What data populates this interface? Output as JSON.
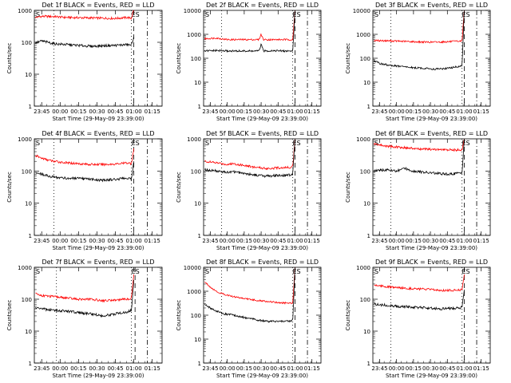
{
  "figure": {
    "colors": {
      "events": "#000000",
      "lld": "#ff0000",
      "axes": "#000000",
      "background": "#ffffff"
    }
  },
  "chart_data": [
    {
      "type": "line",
      "title": "Det 1f BLACK = Events, RED = LLD",
      "xlabel": "Start Time (29-May-09 23:39:00)",
      "ylabel": "Counts/sec",
      "xlim": [
        "23:39",
        "01:23"
      ],
      "ylim": [
        1,
        1000
      ],
      "yscale": "log",
      "x_ticks": [
        "23:45",
        "00:00",
        "00:15",
        "00:30",
        "00:45",
        "01:00",
        "01:15"
      ],
      "y_ticks": [
        "1",
        "10",
        "100",
        "1000"
      ],
      "markers": {
        "left": "S",
        "right": "ES"
      },
      "vlines": [
        {
          "x": "23:55",
          "style": "dotted"
        },
        {
          "x": "00:58",
          "style": "dotted"
        },
        {
          "x": "01:00",
          "style": "dashed"
        },
        {
          "x": "01:11",
          "style": "dashdot"
        }
      ],
      "series": [
        {
          "name": "LLD",
          "color": "#ff0000",
          "x": [
            "23:40",
            "23:45",
            "23:55",
            "00:05",
            "00:15",
            "00:25",
            "00:35",
            "00:45",
            "00:55",
            "00:58",
            "01:00"
          ],
          "y": [
            600,
            650,
            640,
            600,
            590,
            580,
            570,
            560,
            600,
            560,
            1100
          ]
        },
        {
          "name": "Events",
          "color": "#000000",
          "x": [
            "23:40",
            "23:45",
            "23:50",
            "23:55",
            "00:05",
            "00:15",
            "00:25",
            "00:35",
            "00:45",
            "00:55",
            "00:58",
            "01:00"
          ],
          "y": [
            95,
            110,
            100,
            90,
            85,
            80,
            75,
            78,
            80,
            85,
            80,
            150
          ]
        }
      ]
    },
    {
      "type": "line",
      "title": "Det 2f BLACK = Events, RED = LLD",
      "xlabel": "Start Time (29-May-09 23:39:00)",
      "ylabel": "Counts/sec",
      "xlim": [
        "23:39",
        "01:23"
      ],
      "ylim": [
        1,
        10000
      ],
      "yscale": "log",
      "x_ticks": [
        "23:45",
        "00:00",
        "00:15",
        "00:30",
        "00:45",
        "01:00",
        "01:15"
      ],
      "y_ticks": [
        "1",
        "10",
        "100",
        "1000",
        "10000"
      ],
      "markers": {
        "left": "S",
        "right": "ES"
      },
      "vlines": [
        {
          "x": "23:55",
          "style": "dotted"
        },
        {
          "x": "00:58",
          "style": "dotted"
        },
        {
          "x": "01:00",
          "style": "dashed"
        },
        {
          "x": "01:11",
          "style": "dashdot"
        }
      ],
      "series": [
        {
          "name": "LLD",
          "color": "#ff0000",
          "x": [
            "23:40",
            "23:50",
            "00:00",
            "00:10",
            "00:20",
            "00:28",
            "00:30",
            "00:32",
            "00:40",
            "00:50",
            "00:58",
            "01:00"
          ],
          "y": [
            650,
            700,
            600,
            600,
            600,
            600,
            1000,
            600,
            600,
            600,
            600,
            10000
          ]
        },
        {
          "name": "Events",
          "color": "#000000",
          "x": [
            "23:40",
            "23:50",
            "00:00",
            "00:10",
            "00:20",
            "00:28",
            "00:30",
            "00:32",
            "00:40",
            "00:50",
            "00:58",
            "01:00"
          ],
          "y": [
            200,
            210,
            200,
            200,
            200,
            200,
            380,
            200,
            210,
            200,
            200,
            10000
          ]
        }
      ]
    },
    {
      "type": "line",
      "title": "Det 3f BLACK = Events, RED = LLD",
      "xlabel": "Start Time (29-May-09 23:39:00)",
      "ylabel": "Counts/sec",
      "xlim": [
        "23:39",
        "01:23"
      ],
      "ylim": [
        1,
        10000
      ],
      "yscale": "log",
      "x_ticks": [
        "23:45",
        "00:00",
        "00:15",
        "00:30",
        "00:45",
        "01:00",
        "01:15"
      ],
      "y_ticks": [
        "1",
        "10",
        "100",
        "1000",
        "10000"
      ],
      "markers": {
        "left": "S",
        "right": "ES"
      },
      "vlines": [
        {
          "x": "23:55",
          "style": "dotted"
        },
        {
          "x": "00:58",
          "style": "dotted"
        },
        {
          "x": "01:00",
          "style": "dashed"
        },
        {
          "x": "01:11",
          "style": "dashdot"
        }
      ],
      "series": [
        {
          "name": "LLD",
          "color": "#ff0000",
          "x": [
            "23:40",
            "23:50",
            "00:00",
            "00:10",
            "00:20",
            "00:30",
            "00:40",
            "00:50",
            "00:58",
            "01:00"
          ],
          "y": [
            550,
            540,
            520,
            500,
            480,
            470,
            480,
            500,
            520,
            10000
          ]
        },
        {
          "name": "Events",
          "color": "#000000",
          "x": [
            "23:40",
            "23:45",
            "23:55",
            "00:05",
            "00:15",
            "00:25",
            "00:35",
            "00:45",
            "00:55",
            "00:58",
            "01:00"
          ],
          "y": [
            80,
            60,
            50,
            45,
            40,
            38,
            35,
            38,
            45,
            50,
            10000
          ]
        }
      ]
    },
    {
      "type": "line",
      "title": "Det 4f BLACK = Events, RED = LLD",
      "xlabel": "Start Time (29-May-09 23:39:00)",
      "ylabel": "Counts/sec",
      "xlim": [
        "23:39",
        "01:23"
      ],
      "ylim": [
        1,
        1000
      ],
      "yscale": "log",
      "x_ticks": [
        "23:45",
        "00:00",
        "00:15",
        "00:30",
        "00:45",
        "01:00",
        "01:15"
      ],
      "y_ticks": [
        "1",
        "10",
        "100",
        "1000"
      ],
      "markers": {
        "left": "S",
        "right": "ES"
      },
      "vlines": [
        {
          "x": "23:55",
          "style": "dotted"
        },
        {
          "x": "00:58",
          "style": "dotted"
        },
        {
          "x": "01:00",
          "style": "dashed"
        },
        {
          "x": "01:11",
          "style": "dashdot"
        }
      ],
      "series": [
        {
          "name": "LLD",
          "color": "#ff0000",
          "x": [
            "23:40",
            "23:45",
            "23:50",
            "23:55",
            "00:05",
            "00:15",
            "00:25",
            "00:35",
            "00:45",
            "00:55",
            "00:58",
            "01:00"
          ],
          "y": [
            300,
            250,
            220,
            200,
            180,
            170,
            160,
            160,
            165,
            180,
            170,
            500
          ]
        },
        {
          "name": "Events",
          "color": "#000000",
          "x": [
            "23:40",
            "23:45",
            "23:50",
            "23:55",
            "00:05",
            "00:15",
            "00:25",
            "00:35",
            "00:45",
            "00:55",
            "00:58",
            "01:00"
          ],
          "y": [
            90,
            80,
            70,
            65,
            60,
            58,
            55,
            52,
            55,
            60,
            55,
            200
          ]
        }
      ]
    },
    {
      "type": "line",
      "title": "Det 5f BLACK = Events, RED = LLD",
      "xlabel": "Start Time (29-May-09 23:39:00)",
      "ylabel": "Counts/sec",
      "xlim": [
        "23:39",
        "01:23"
      ],
      "ylim": [
        1,
        1000
      ],
      "yscale": "log",
      "x_ticks": [
        "23:45",
        "00:00",
        "00:15",
        "00:30",
        "00:45",
        "01:00",
        "01:15"
      ],
      "y_ticks": [
        "1",
        "10",
        "100",
        "1000"
      ],
      "markers": {
        "left": "S",
        "right": "ES"
      },
      "vlines": [
        {
          "x": "23:55",
          "style": "dotted"
        },
        {
          "x": "00:58",
          "style": "dotted"
        },
        {
          "x": "01:00",
          "style": "dashed"
        },
        {
          "x": "01:11",
          "style": "dashdot"
        }
      ],
      "series": [
        {
          "name": "LLD",
          "color": "#ff0000",
          "x": [
            "23:40",
            "23:50",
            "00:00",
            "00:05",
            "00:15",
            "00:25",
            "00:35",
            "00:45",
            "00:55",
            "00:58",
            "01:00"
          ],
          "y": [
            200,
            180,
            160,
            170,
            150,
            130,
            120,
            125,
            130,
            140,
            1000
          ]
        },
        {
          "name": "Events",
          "color": "#000000",
          "x": [
            "23:40",
            "23:50",
            "00:00",
            "00:05",
            "00:15",
            "00:25",
            "00:35",
            "00:45",
            "00:55",
            "00:58",
            "01:00"
          ],
          "y": [
            110,
            100,
            90,
            95,
            85,
            75,
            70,
            72,
            75,
            80,
            1000
          ]
        }
      ]
    },
    {
      "type": "line",
      "title": "Det 6f BLACK = Events, RED = LLD",
      "xlabel": "Start Time (29-May-09 23:39:00)",
      "ylabel": "Counts/sec",
      "xlim": [
        "23:39",
        "01:23"
      ],
      "ylim": [
        1,
        1000
      ],
      "yscale": "log",
      "x_ticks": [
        "23:45",
        "00:00",
        "00:15",
        "00:30",
        "00:45",
        "01:00",
        "01:15"
      ],
      "y_ticks": [
        "1",
        "10",
        "100",
        "1000"
      ],
      "markers": {
        "left": "S",
        "right": "ES"
      },
      "vlines": [
        {
          "x": "23:55",
          "style": "dotted"
        },
        {
          "x": "00:58",
          "style": "dotted"
        },
        {
          "x": "01:00",
          "style": "dashed"
        },
        {
          "x": "01:11",
          "style": "dashdot"
        }
      ],
      "series": [
        {
          "name": "LLD",
          "color": "#ff0000",
          "x": [
            "23:40",
            "23:50",
            "00:00",
            "00:10",
            "00:20",
            "00:30",
            "00:40",
            "00:50",
            "00:58",
            "01:00"
          ],
          "y": [
            700,
            600,
            560,
            520,
            480,
            470,
            460,
            450,
            460,
            1000
          ]
        },
        {
          "name": "Events",
          "color": "#000000",
          "x": [
            "23:40",
            "23:50",
            "00:00",
            "00:08",
            "00:15",
            "00:25",
            "00:35",
            "00:45",
            "00:55",
            "00:58",
            "01:00"
          ],
          "y": [
            100,
            110,
            100,
            120,
            100,
            90,
            85,
            80,
            85,
            90,
            1000
          ]
        }
      ]
    },
    {
      "type": "line",
      "title": "Det 7f BLACK = Events, RED = LLD",
      "xlabel": "Start Time (29-May-09 23:39:00)",
      "ylabel": "Counts/sec",
      "xlim": [
        "23:39",
        "01:23"
      ],
      "ylim": [
        1,
        1000
      ],
      "yscale": "log",
      "x_ticks": [
        "23:45",
        "00:00",
        "00:15",
        "00:30",
        "00:45",
        "01:00",
        "01:15"
      ],
      "y_ticks": [
        "1",
        "10",
        "100",
        "1000"
      ],
      "markers": {
        "left": "S",
        "right": "ES"
      },
      "vlines": [
        {
          "x": "23:57",
          "style": "dotted"
        },
        {
          "x": "00:58",
          "style": "dotted"
        },
        {
          "x": "01:01",
          "style": "dashed"
        },
        {
          "x": "01:11",
          "style": "dashdot"
        }
      ],
      "series": [
        {
          "name": "LLD",
          "color": "#ff0000",
          "x": [
            "23:40",
            "23:45",
            "23:55",
            "00:05",
            "00:15",
            "00:25",
            "00:35",
            "00:45",
            "00:55",
            "00:58",
            "01:00"
          ],
          "y": [
            150,
            130,
            120,
            110,
            100,
            100,
            90,
            95,
            100,
            110,
            600
          ]
        },
        {
          "name": "Events",
          "color": "#000000",
          "x": [
            "23:40",
            "23:45",
            "23:55",
            "00:05",
            "00:15",
            "00:25",
            "00:35",
            "00:45",
            "00:55",
            "00:58",
            "01:00"
          ],
          "y": [
            55,
            50,
            45,
            42,
            38,
            35,
            30,
            35,
            40,
            45,
            400
          ]
        }
      ]
    },
    {
      "type": "line",
      "title": "Det 8f BLACK = Events, RED = LLD",
      "xlabel": "Start Time (29-May-09 23:39:00)",
      "ylabel": "Counts/sec",
      "xlim": [
        "23:39",
        "01:23"
      ],
      "ylim": [
        1,
        10000
      ],
      "yscale": "log",
      "x_ticks": [
        "23:45",
        "00:00",
        "00:15",
        "00:30",
        "00:45",
        "01:00",
        "01:15"
      ],
      "y_ticks": [
        "1",
        "10",
        "100",
        "1000",
        "10000"
      ],
      "markers": {
        "left": "S",
        "right": "ES"
      },
      "vlines": [
        {
          "x": "23:55",
          "style": "dotted"
        },
        {
          "x": "00:58",
          "style": "dotted"
        },
        {
          "x": "01:00",
          "style": "dashed"
        },
        {
          "x": "01:11",
          "style": "dashdot"
        }
      ],
      "series": [
        {
          "name": "LLD",
          "color": "#ff0000",
          "x": [
            "23:40",
            "23:45",
            "23:50",
            "23:55",
            "00:05",
            "00:15",
            "00:25",
            "00:35",
            "00:45",
            "00:55",
            "00:58",
            "01:00"
          ],
          "y": [
            2500,
            1500,
            1000,
            800,
            600,
            500,
            420,
            380,
            330,
            320,
            330,
            10000
          ]
        },
        {
          "name": "Events",
          "color": "#000000",
          "x": [
            "23:40",
            "23:45",
            "23:50",
            "23:55",
            "00:05",
            "00:15",
            "00:25",
            "00:35",
            "00:45",
            "00:55",
            "00:58",
            "01:00"
          ],
          "y": [
            300,
            200,
            150,
            120,
            100,
            80,
            65,
            55,
            55,
            55,
            60,
            10000
          ]
        }
      ]
    },
    {
      "type": "line",
      "title": "Det 9f BLACK = Events, RED = LLD",
      "xlabel": "Start Time (29-May-09 23:39:00)",
      "ylabel": "Counts/sec",
      "xlim": [
        "23:39",
        "01:23"
      ],
      "ylim": [
        1,
        1000
      ],
      "yscale": "log",
      "x_ticks": [
        "23:45",
        "00:00",
        "00:15",
        "00:30",
        "00:45",
        "01:00",
        "01:15"
      ],
      "y_ticks": [
        "1",
        "10",
        "100",
        "1000"
      ],
      "markers": {
        "left": "S",
        "right": "ES"
      },
      "vlines": [
        {
          "x": "23:55",
          "style": "dotted"
        },
        {
          "x": "00:58",
          "style": "dotted"
        },
        {
          "x": "01:00",
          "style": "dashed"
        },
        {
          "x": "01:11",
          "style": "dashdot"
        }
      ],
      "series": [
        {
          "name": "LLD",
          "color": "#ff0000",
          "x": [
            "23:40",
            "23:50",
            "00:00",
            "00:10",
            "00:20",
            "00:30",
            "00:40",
            "00:50",
            "00:58",
            "01:00"
          ],
          "y": [
            280,
            250,
            230,
            220,
            210,
            200,
            190,
            190,
            200,
            600
          ]
        },
        {
          "name": "Events",
          "color": "#000000",
          "x": [
            "23:40",
            "23:50",
            "00:00",
            "00:10",
            "00:20",
            "00:30",
            "00:40",
            "00:50",
            "00:58",
            "01:00"
          ],
          "y": [
            70,
            65,
            60,
            58,
            55,
            52,
            50,
            52,
            55,
            200
          ]
        }
      ]
    }
  ]
}
